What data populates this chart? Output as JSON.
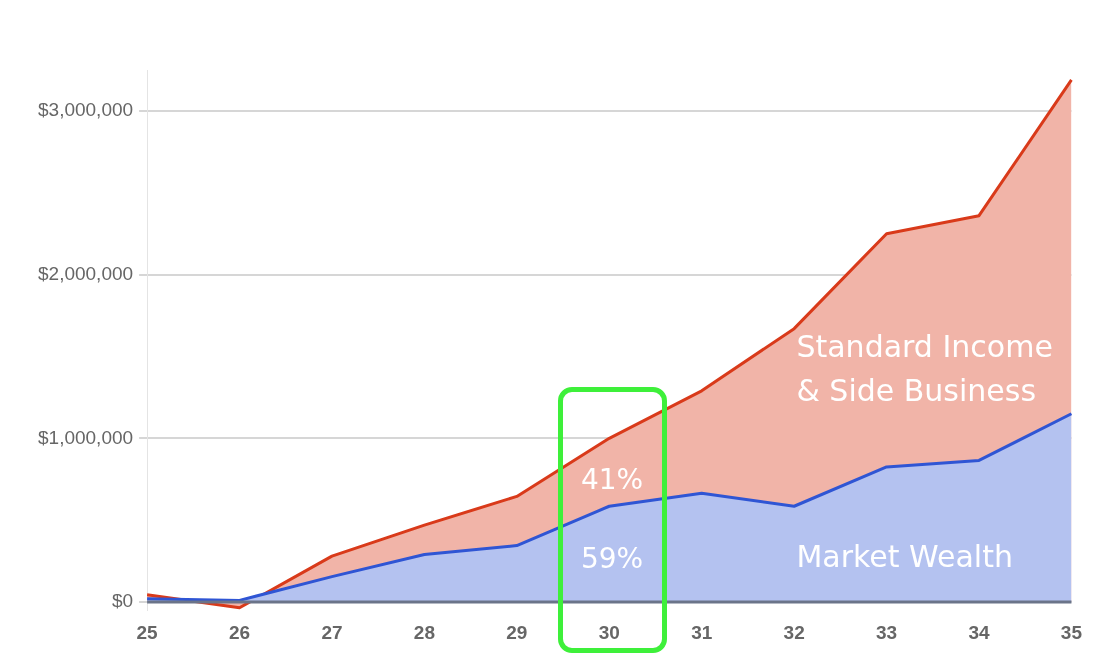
{
  "chart_data": {
    "type": "area",
    "categories": [
      "25",
      "26",
      "27",
      "28",
      "29",
      "30",
      "31",
      "32",
      "33",
      "34",
      "35"
    ],
    "series": [
      {
        "name": "Standard Income & Side Business",
        "color": "#d93a1a",
        "values": [
          45000,
          -35000,
          280000,
          470000,
          645000,
          1000000,
          1290000,
          1670000,
          2250000,
          2360000,
          3190000
        ]
      },
      {
        "name": "Market Wealth",
        "color": "#2f55d4",
        "values": [
          20000,
          10000,
          155000,
          290000,
          345000,
          585000,
          665000,
          585000,
          825000,
          865000,
          1150000
        ]
      }
    ],
    "ylim": [
      -50000,
      3250000
    ],
    "yticks": [
      {
        "value": 0,
        "label": "$0"
      },
      {
        "value": 1000000,
        "label": "$1,000,000"
      },
      {
        "value": 2000000,
        "label": "$2,000,000"
      },
      {
        "value": 3000000,
        "label": "$3,000,000"
      }
    ],
    "grid": "y",
    "legend": false,
    "annotations": [
      "41%",
      "59%"
    ]
  }
}
